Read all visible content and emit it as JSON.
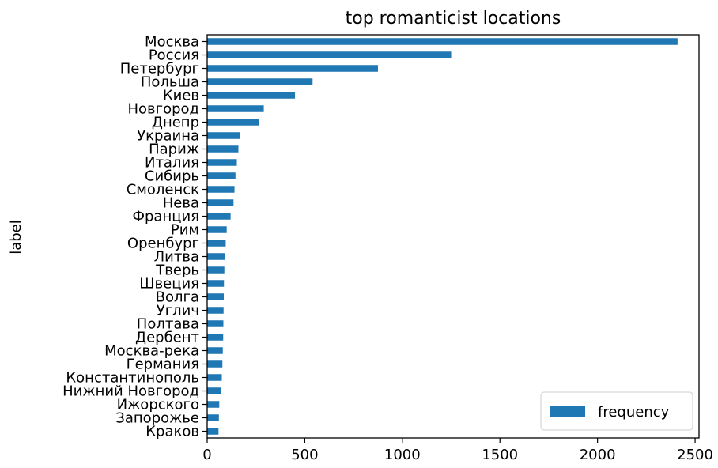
{
  "chart_data": {
    "type": "bar",
    "orientation": "horizontal",
    "title": "top romanticist locations",
    "xlabel": "",
    "ylabel": "label",
    "xlim": [
      0,
      2520
    ],
    "xticks": [
      0,
      500,
      1000,
      1500,
      2000,
      2500
    ],
    "grid": false,
    "legend_position": "lower-right",
    "series": [
      {
        "name": "frequency",
        "color": "#1f77b4",
        "values": [
          2410,
          1250,
          875,
          540,
          450,
          290,
          265,
          170,
          160,
          152,
          145,
          140,
          135,
          120,
          100,
          95,
          90,
          88,
          86,
          85,
          84,
          83,
          82,
          80,
          78,
          75,
          70,
          62,
          60,
          58
        ]
      }
    ],
    "categories": [
      "Москва",
      "Россия",
      "Петербург",
      "Польша",
      "Киев",
      "Новгород",
      "Днепр",
      "Украина",
      "Париж",
      "Италия",
      "Сибирь",
      "Смоленск",
      "Нева",
      "Франция",
      "Рим",
      "Оренбург",
      "Литва",
      "Тверь",
      "Швеция",
      "Волга",
      "Углич",
      "Полтава",
      "Дербент",
      "Москва-река",
      "Германия",
      "Константинополь",
      "Нижний Новгород",
      "Ижорского",
      "Запорожье",
      "Краков"
    ]
  }
}
